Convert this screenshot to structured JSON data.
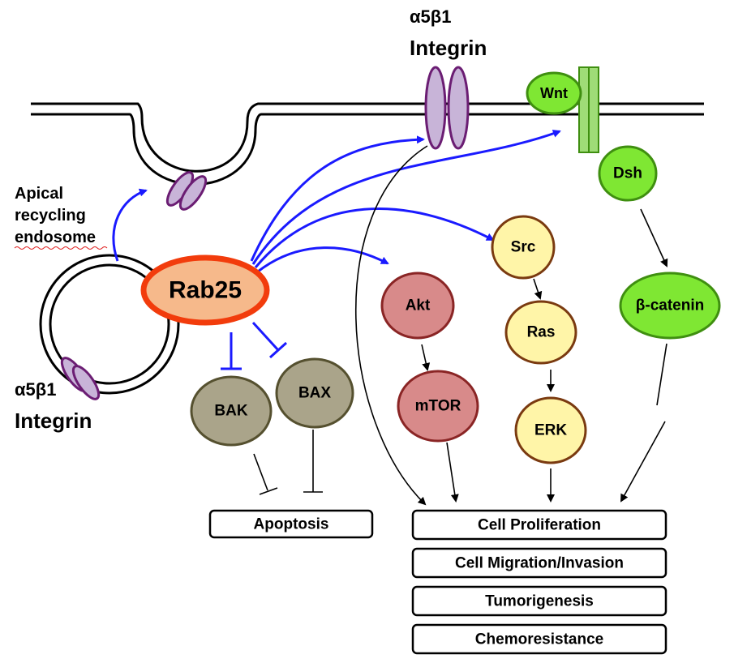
{
  "labels": {
    "integrin_top_line1": "α5β1",
    "integrin_top_line2": "Integrin",
    "integrin_bottom_line1": "α5β1",
    "integrin_bottom_line2": "Integrin",
    "apical_line1": "Apical",
    "apical_line2": "recycling",
    "apical_line3": "endosome"
  },
  "nodes": {
    "rab25": "Rab25",
    "wnt": "Wnt",
    "dsh": "Dsh",
    "beta_catenin": "β-catenin",
    "src": "Src",
    "ras": "Ras",
    "erk": "ERK",
    "akt": "Akt",
    "mtor": "mTOR",
    "bak": "BAK",
    "bax": "BAX"
  },
  "outcomes": {
    "apoptosis": "Apoptosis",
    "proliferation": "Cell Proliferation",
    "migration": "Cell Migration/Invasion",
    "tumorigenesis": "Tumorigenesis",
    "chemoresistance": "Chemoresistance"
  },
  "colors": {
    "rab25_fill": "#f6b98b",
    "rab25_stroke": "#f23c0c",
    "green_fill": "#7fe733",
    "green_stroke": "#3f8f10",
    "yellow_fill": "#fff5a8",
    "yellow_stroke": "#7a3a10",
    "red_fill": "#d88a8a",
    "red_stroke": "#8a2525",
    "tan_fill": "#aaa48a",
    "tan_stroke": "#55502f",
    "integrin_fill": "#c8b4d8",
    "integrin_stroke": "#6b1d73",
    "blue_arrow": "#1a1aff"
  }
}
